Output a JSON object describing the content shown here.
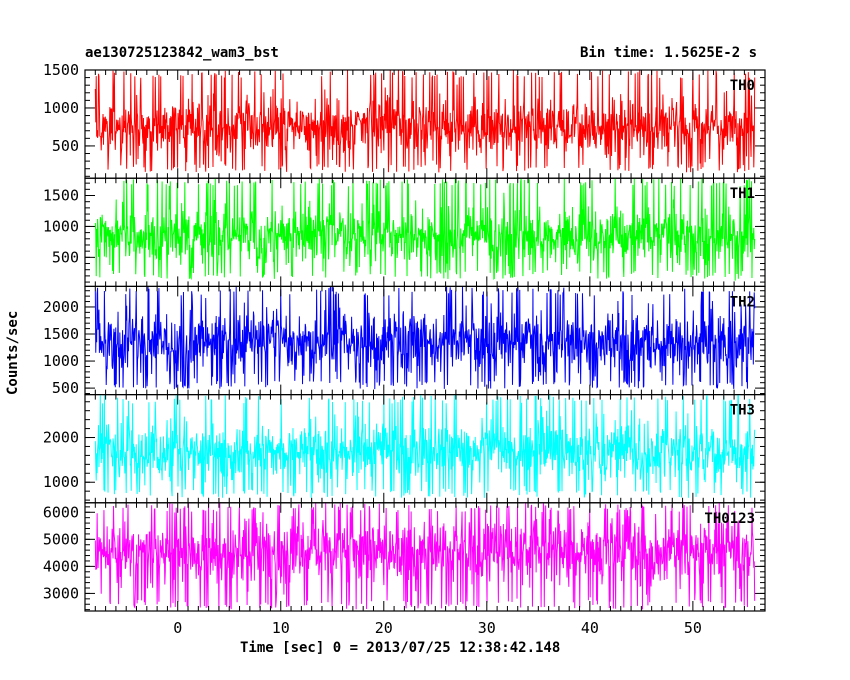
{
  "header": {
    "title": "ae130725123842_wam3_bst",
    "bin_time": "Bin time: 1.5625E-2 s"
  },
  "axes": {
    "ylabel": "Counts/sec",
    "xlabel": "Time [sec] 0 = 2013/07/25 12:38:42.148"
  },
  "chart_data": {
    "type": "line",
    "x_range": [
      -9,
      57
    ],
    "x_ticks": [
      "0",
      "10",
      "20",
      "30",
      "40",
      "50"
    ],
    "x_tick_values": [
      0,
      10,
      20,
      30,
      40,
      50
    ],
    "data_x_range": [
      -8,
      56
    ],
    "panels": [
      {
        "name": "TH0",
        "color": "#ff0000",
        "ylim": [
          75,
          1500
        ],
        "yticks": [
          500,
          1000,
          1500
        ],
        "baseline": 750,
        "noise": 180,
        "low": 150,
        "high": 1500
      },
      {
        "name": "TH1",
        "color": "#00ff00",
        "ylim": [
          30,
          1780
        ],
        "yticks": [
          500,
          1000,
          1500
        ],
        "baseline": 850,
        "noise": 220,
        "low": 150,
        "high": 1780
      },
      {
        "name": "TH2",
        "color": "#0000ff",
        "ylim": [
          380,
          2380
        ],
        "yticks": [
          500,
          1000,
          1500,
          2000
        ],
        "baseline": 1350,
        "noise": 280,
        "low": 480,
        "high": 2380
      },
      {
        "name": "TH3",
        "color": "#00ffff",
        "ylim": [
          540,
          2960
        ],
        "yticks": [
          1000,
          2000
        ],
        "baseline": 1700,
        "noise": 330,
        "low": 650,
        "high": 2960
      },
      {
        "name": "TH0123",
        "color": "#ff00ff",
        "ylim": [
          2350,
          6350
        ],
        "yticks": [
          3000,
          4000,
          5000,
          6000
        ],
        "baseline": 4550,
        "noise": 600,
        "low": 2400,
        "high": 6350
      }
    ]
  }
}
